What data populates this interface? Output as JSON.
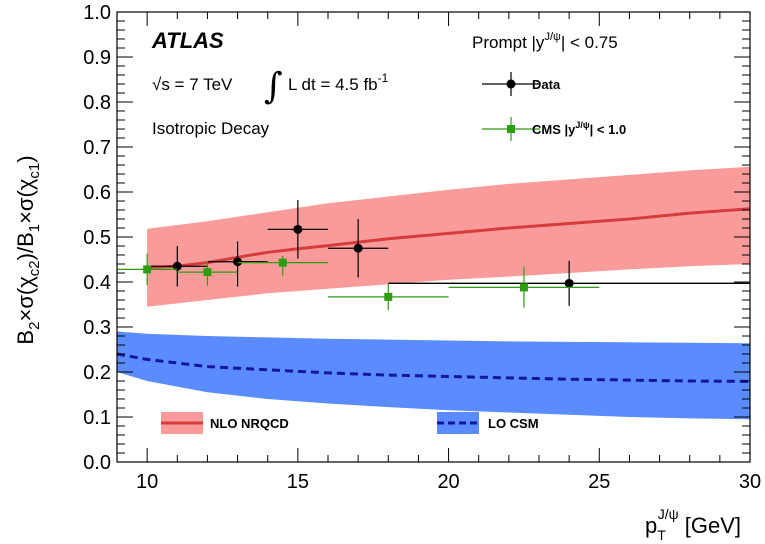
{
  "chart_data": {
    "type": "scatter",
    "title": "",
    "xlabel": {
      "base": "p",
      "sub": "T",
      "sup": "J/ψ",
      "unit": " [GeV]"
    },
    "ylabel": {
      "t1": "B",
      "s1": "2",
      "t2": "×σ(χ",
      "s2": "c2",
      "t3": ")/B",
      "s3": "1",
      "t4": "×σ(χ",
      "s4": "c1",
      "t5": ")"
    },
    "xlim": [
      9,
      30
    ],
    "ylim": [
      0,
      1.0
    ],
    "xticks": [
      10,
      15,
      20,
      25,
      30
    ],
    "yticks": [
      "0.0",
      "0.1",
      "0.2",
      "0.3",
      "0.4",
      "0.5",
      "0.6",
      "0.7",
      "0.8",
      "0.9",
      "1.0"
    ],
    "annotations": {
      "atlas": "ATLAS",
      "prompt": {
        "pre": "Prompt  |y",
        "sup": "J/ψ",
        "post": "| < 0.75"
      },
      "energy": {
        "root": "√s = 7 TeV",
        "integral": "∫",
        "lumi_pre": "L dt = 4.5 fb",
        "lumi_sup": "-1"
      },
      "isotropic": "Isotropic Decay"
    },
    "legend": {
      "data": "Data",
      "cms": {
        "pre": "CMS |y",
        "sup": "J/ψ",
        "post": "| < 1.0"
      },
      "nlo": "NLO NRQCD",
      "lo": "LO CSM"
    },
    "colors": {
      "nlo_band": "#f99b9b",
      "nlo_line": "#d63c3c",
      "lo_band": "#5b8cff",
      "lo_line": "#1515a0",
      "data": "#000000",
      "cms": "#2e9c12"
    },
    "series": [
      {
        "name": "Data",
        "points": [
          {
            "x": 11,
            "y": 0.435,
            "xerr": [
              1,
              1
            ],
            "yerr": [
              0.045,
              0.045
            ]
          },
          {
            "x": 13,
            "y": 0.445,
            "xerr": [
              1,
              1
            ],
            "yerr": [
              0.055,
              0.045
            ]
          },
          {
            "x": 15,
            "y": 0.517,
            "xerr": [
              1,
              1
            ],
            "yerr": [
              0.065,
              0.065
            ]
          },
          {
            "x": 17,
            "y": 0.475,
            "xerr": [
              1,
              1
            ],
            "yerr": [
              0.065,
              0.065
            ]
          },
          {
            "x": 24,
            "y": 0.397,
            "xerr": [
              6,
              6
            ],
            "yerr": [
              0.05,
              0.05
            ]
          }
        ]
      },
      {
        "name": "CMS |yJ/ψ| < 1.0",
        "points": [
          {
            "x": 10,
            "y": 0.428,
            "xerr": [
              1,
              1
            ],
            "yerr": [
              0.035,
              0.035
            ]
          },
          {
            "x": 12,
            "y": 0.422,
            "xerr": [
              1,
              1
            ],
            "yerr": [
              0.03,
              0.025
            ]
          },
          {
            "x": 14.5,
            "y": 0.443,
            "xerr": [
              1.5,
              1.5
            ],
            "yerr": [
              0.03,
              0.015
            ]
          },
          {
            "x": 18,
            "y": 0.367,
            "xerr": [
              2,
              2
            ],
            "yerr": [
              0.03,
              0.03
            ]
          },
          {
            "x": 22.5,
            "y": 0.388,
            "xerr": [
              2.5,
              2.5
            ],
            "yerr": [
              0.045,
              0.045
            ]
          }
        ]
      },
      {
        "name": "NLO NRQCD",
        "band": {
          "x": [
            10,
            12,
            14,
            16,
            18,
            20,
            22,
            24,
            26,
            28,
            30
          ],
          "lo": [
            0.345,
            0.36,
            0.375,
            0.385,
            0.395,
            0.405,
            0.412,
            0.42,
            0.428,
            0.435,
            0.44
          ],
          "hi": [
            0.518,
            0.535,
            0.555,
            0.575,
            0.59,
            0.605,
            0.618,
            0.628,
            0.638,
            0.648,
            0.656
          ]
        },
        "line": {
          "x": [
            10,
            11,
            12,
            13,
            14,
            15,
            16,
            18,
            20,
            22,
            24,
            26,
            28,
            30
          ],
          "y": [
            0.432,
            0.435,
            0.443,
            0.455,
            0.466,
            0.474,
            0.481,
            0.496,
            0.508,
            0.52,
            0.53,
            0.54,
            0.553,
            0.563
          ]
        }
      },
      {
        "name": "LO CSM",
        "band": {
          "x": [
            9,
            10,
            12,
            14,
            16,
            18,
            20,
            22,
            24,
            26,
            28,
            30
          ],
          "lo": [
            0.2,
            0.18,
            0.155,
            0.14,
            0.13,
            0.122,
            0.115,
            0.11,
            0.105,
            0.1,
            0.097,
            0.095
          ],
          "hi": [
            0.29,
            0.285,
            0.28,
            0.277,
            0.274,
            0.272,
            0.27,
            0.268,
            0.267,
            0.266,
            0.265,
            0.264
          ]
        },
        "line": {
          "x": [
            9,
            10,
            11,
            12,
            14,
            16,
            18,
            20,
            22,
            24,
            26,
            28,
            30
          ],
          "y": [
            0.24,
            0.228,
            0.22,
            0.212,
            0.205,
            0.198,
            0.193,
            0.19,
            0.187,
            0.184,
            0.182,
            0.18,
            0.179
          ]
        }
      }
    ],
    "reference_line": {
      "y": 0.397,
      "x": [
        18,
        30
      ]
    }
  }
}
